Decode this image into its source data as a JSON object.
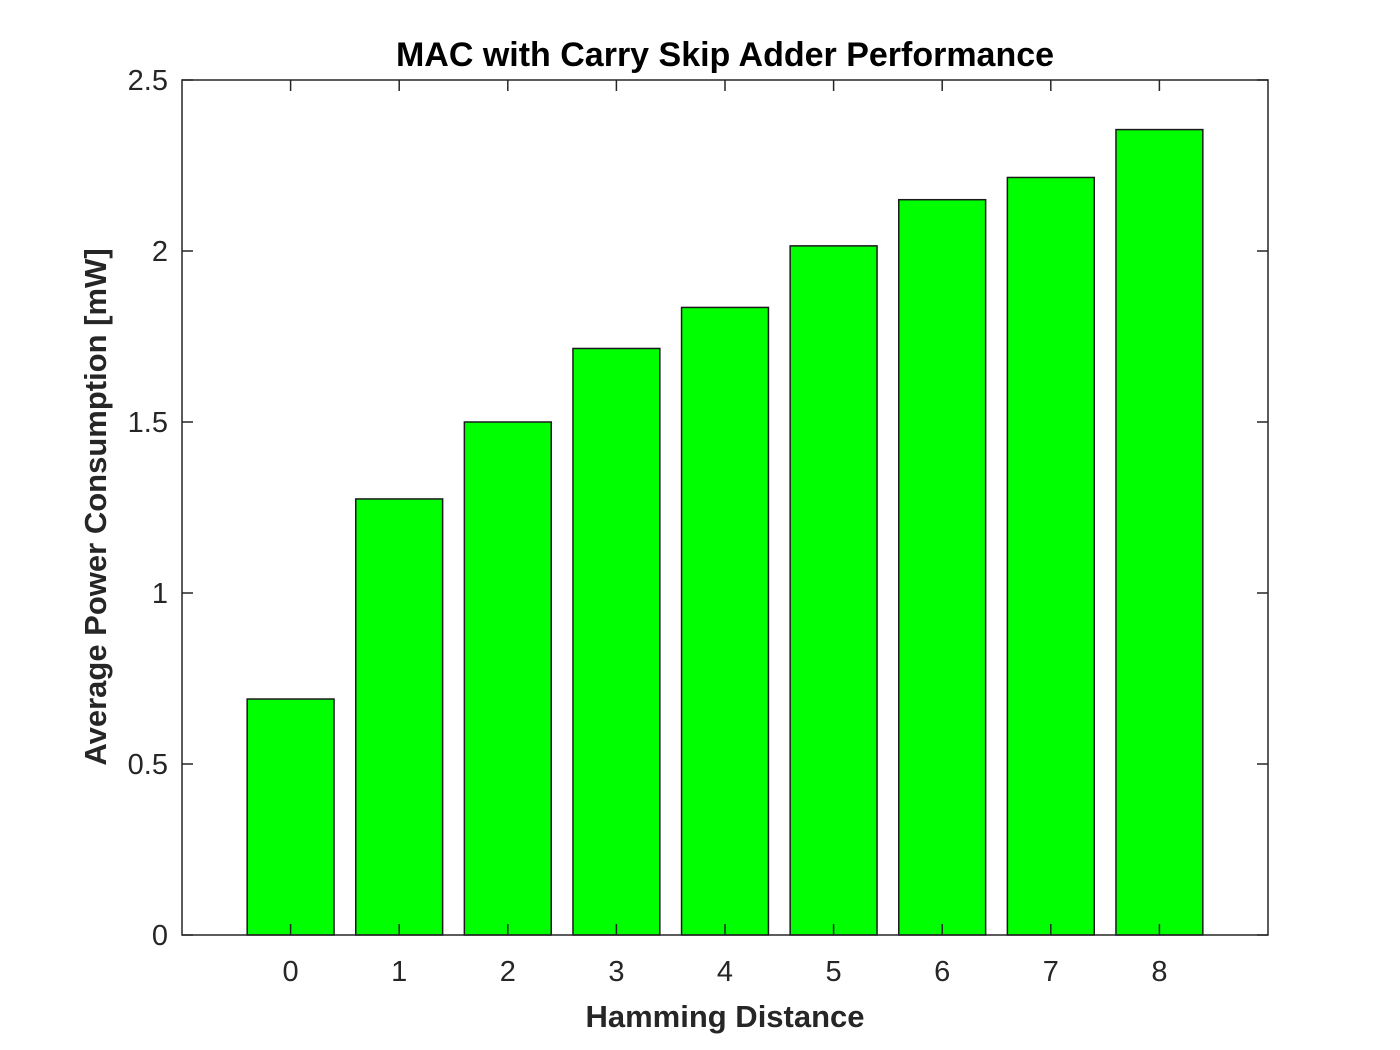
{
  "chart_data": {
    "type": "bar",
    "title": "MAC with Carry Skip Adder Performance",
    "xlabel": "Hamming Distance",
    "ylabel": "Average Power Consumption [mW]",
    "categories": [
      "0",
      "1",
      "2",
      "3",
      "4",
      "5",
      "6",
      "7",
      "8"
    ],
    "values": [
      0.69,
      1.275,
      1.5,
      1.715,
      1.835,
      2.015,
      2.15,
      2.215,
      2.355
    ],
    "ylim": [
      0,
      2.5
    ],
    "yticks": [
      "0",
      "0.5",
      "1",
      "1.5",
      "2",
      "2.5"
    ],
    "bar_color": "#00ff00",
    "grid": false,
    "box": true
  }
}
